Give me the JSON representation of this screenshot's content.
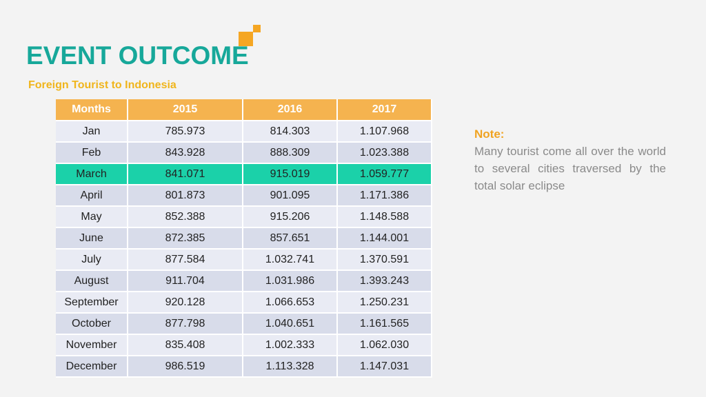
{
  "header": {
    "title": "EVENT OUTCOME",
    "subtitle": "Foreign Tourist to Indonesia"
  },
  "colors": {
    "title": "#17a89a",
    "subtitle": "#f0b51c",
    "logo": "#f5a623",
    "table_header": "#f5b34f",
    "row_highlight": "#1bd1a9",
    "row_light": "#e9ebf4",
    "row_dark": "#d8dcea"
  },
  "table": {
    "columns": [
      "Months",
      "2015",
      "2016",
      "2017"
    ],
    "highlighted_row": "March",
    "rows": [
      [
        "Jan",
        "785.973",
        "814.303",
        "1.107.968"
      ],
      [
        "Feb",
        "843.928",
        "888.309",
        "1.023.388"
      ],
      [
        "March",
        "841.071",
        "915.019",
        "1.059.777"
      ],
      [
        "April",
        "801.873",
        "901.095",
        "1.171.386"
      ],
      [
        "May",
        "852.388",
        "915.206",
        "1.148.588"
      ],
      [
        "June",
        "872.385",
        "857.651",
        "1.144.001"
      ],
      [
        "July",
        "877.584",
        "1.032.741",
        "1.370.591"
      ],
      [
        "August",
        "911.704",
        "1.031.986",
        "1.393.243"
      ],
      [
        "September",
        "920.128",
        "1.066.653",
        "1.250.231"
      ],
      [
        "October",
        "877.798",
        "1.040.651",
        "1.161.565"
      ],
      [
        "November",
        "835.408",
        "1.002.333",
        "1.062.030"
      ],
      [
        "December",
        "986.519",
        "1.113.328",
        "1.147.031"
      ]
    ]
  },
  "note": {
    "title": "Note:",
    "body": "Many tourist come all over the world to several cities traversed by the total solar eclipse"
  }
}
